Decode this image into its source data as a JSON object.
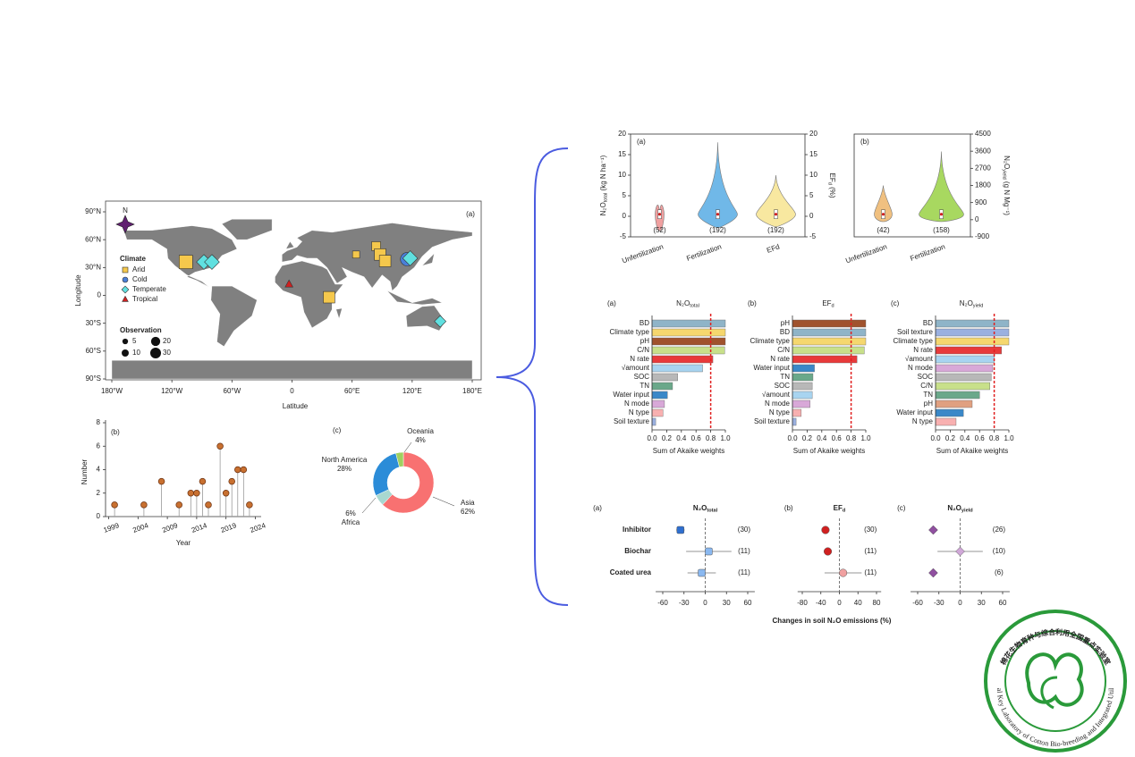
{
  "chart_data": [
    {
      "type": "map",
      "panel": "(a)",
      "north": "N",
      "xlabel": "Latitude",
      "ylabel": "Longitude",
      "xlim": [
        -180,
        180
      ],
      "ylim": [
        -90,
        90
      ],
      "xticks": [
        {
          "value": -180,
          "label": "180°W"
        },
        {
          "value": -120,
          "label": "120°W"
        },
        {
          "value": -60,
          "label": "60°W"
        },
        0,
        {
          "value": 60,
          "label": "60°E"
        },
        {
          "value": 120,
          "label": "120°E"
        },
        {
          "value": 180,
          "label": "180°E"
        }
      ],
      "yticks": [
        {
          "value": 90,
          "label": "90°N"
        },
        {
          "value": 60,
          "label": "60°N"
        },
        {
          "value": 30,
          "label": "30°N"
        },
        0,
        {
          "value": -30,
          "label": "30°S"
        },
        {
          "value": -60,
          "label": "60°S"
        },
        {
          "value": -90,
          "label": "90°S"
        }
      ],
      "climate_title": "Climate",
      "climates": [
        "Arid",
        "Cold",
        "Temperate",
        "Tropical"
      ],
      "climate_colors": [
        "#f5c84c",
        "#4a7fd8",
        "#60e0e0",
        "#d02020"
      ],
      "observation_title": "Observation",
      "observations": [
        5,
        10,
        20,
        30
      ],
      "points": {
        "lon": [
          -106,
          -88,
          -80,
          84,
          88,
          93,
          64,
          115,
          118,
          37,
          -3,
          148
        ],
        "lat": [
          36,
          36,
          36,
          53,
          44,
          37,
          44,
          39,
          40,
          -2,
          12,
          -28
        ],
        "climate": [
          0,
          2,
          2,
          0,
          0,
          0,
          0,
          1,
          2,
          0,
          3,
          2
        ],
        "observations": [
          30,
          20,
          20,
          10,
          20,
          20,
          5,
          30,
          20,
          20,
          5,
          10
        ]
      }
    },
    {
      "type": "lollipop",
      "panel": "(b)",
      "xlabel": "Year",
      "ylabel": "Number",
      "x": [
        2000,
        2005,
        2008,
        2011,
        2013,
        2014,
        2015,
        2016,
        2018,
        2019,
        2020,
        2021,
        2022,
        2023
      ],
      "values": [
        1,
        1,
        3,
        1,
        2,
        2,
        3,
        1,
        6,
        2,
        3,
        4,
        4,
        1
      ],
      "color": "#c87030",
      "xlim": [
        1998,
        2025
      ],
      "xticks": [
        1999,
        2004,
        2009,
        2014,
        2019,
        2024
      ],
      "ylim": [
        0,
        8
      ],
      "yticks": [
        0,
        2,
        4,
        6,
        8
      ]
    },
    {
      "type": "donut",
      "panel": "(c)",
      "categories": [
        "Asia",
        "Africa",
        "North America",
        "Oceania"
      ],
      "values": [
        62,
        6,
        28,
        4
      ],
      "value_labels": [
        "62%",
        "6%",
        "28%",
        "4%"
      ],
      "colors": [
        "#f87171",
        "#a8d8d0",
        "#2b8cd8",
        "#a0d060"
      ]
    },
    {
      "type": "violin",
      "panel": "(a)",
      "categories": [
        "Unfertilization",
        "Fertilization",
        "EFd"
      ],
      "counts": [
        52,
        192,
        192
      ],
      "count_labels": [
        "(52)",
        "(192)",
        "(192)"
      ],
      "colors": [
        "#f0a0a0",
        "#70b8e8",
        "#f8e8a0"
      ],
      "ylim": [
        -5,
        20
      ],
      "yticks": [
        -5,
        0,
        5,
        10,
        15,
        20
      ],
      "y2lim": [
        -5,
        20
      ],
      "y2ticks": [
        -5,
        0,
        5,
        10,
        15,
        20
      ],
      "ylabel": {
        "main": "N₂O",
        "sub": "total",
        "unit": " (kg N ha⁻¹)"
      },
      "y2label": {
        "main": "EF",
        "sub": "d",
        "unit": " (%)"
      }
    },
    {
      "type": "violin",
      "panel": "(b)",
      "categories": [
        "Unfertilization",
        "Fertilization"
      ],
      "counts": [
        42,
        158
      ],
      "count_labels": [
        "(42)",
        "(158)"
      ],
      "colors": [
        "#f0c080",
        "#a8d860"
      ],
      "y2lim": [
        -900,
        4500
      ],
      "y2ticks": [
        -900,
        0,
        900,
        1800,
        2700,
        3600,
        4500
      ],
      "y2label": {
        "main": "N₂O",
        "sub": "yield",
        "unit": " (g N Mg⁻¹)"
      }
    },
    {
      "type": "hbar",
      "panel": "(a)",
      "title": {
        "main": "N₂O",
        "sub": "total"
      },
      "xlabel": "Sum of Akaike weights",
      "categories": [
        "BD",
        "Climate type",
        "pH",
        "C/N",
        "N rate",
        "√amount",
        "SOC",
        "TN",
        "Water input",
        "N mode",
        "N type",
        "Soil texture"
      ],
      "values": [
        1.0,
        1.0,
        1.0,
        0.99,
        0.83,
        0.69,
        0.35,
        0.28,
        0.21,
        0.17,
        0.15,
        0.05
      ],
      "colors": [
        "#8fb4c8",
        "#f5d76e",
        "#a0522d",
        "#c8e08a",
        "#e83a3a",
        "#a8d4f0",
        "#b8b8b8",
        "#6aa88a",
        "#3a88c8",
        "#d8a8d8",
        "#f8b0b0",
        "#9ab0e0"
      ],
      "threshold": 0.8,
      "xlim": [
        0,
        1
      ],
      "xticks": [
        {
          "value": 0,
          "label": "0.0"
        },
        0.2,
        0.4,
        0.6,
        0.8,
        {
          "value": 1,
          "label": "1.0"
        }
      ]
    },
    {
      "type": "hbar",
      "panel": "(b)",
      "title": {
        "main": "EF",
        "sub": "d"
      },
      "xlabel": "Sum of Akaike weights",
      "categories": [
        "pH",
        "BD",
        "Climate type",
        "C/N",
        "N rate",
        "Water input",
        "TN",
        "SOC",
        "√amount",
        "N mode",
        "N type",
        "Soil texture"
      ],
      "values": [
        1.0,
        1.0,
        1.0,
        0.98,
        0.88,
        0.3,
        0.28,
        0.27,
        0.27,
        0.24,
        0.12,
        0.05
      ],
      "colors": [
        "#a0522d",
        "#8fb4c8",
        "#f5d76e",
        "#c8e08a",
        "#e83a3a",
        "#3a88c8",
        "#6aa88a",
        "#b8b8b8",
        "#a8d4f0",
        "#d8a8d8",
        "#f8b0b0",
        "#9ab0e0"
      ],
      "threshold": 0.8,
      "xlim": [
        0,
        1
      ],
      "xticks": [
        {
          "value": 0,
          "label": "0.0"
        },
        0.2,
        0.4,
        0.6,
        0.8,
        {
          "value": 1,
          "label": "1.0"
        }
      ]
    },
    {
      "type": "hbar",
      "panel": "(c)",
      "title": {
        "main": "N₂O",
        "sub": "yield"
      },
      "xlabel": "Sum of Akaike weights",
      "categories": [
        "BD",
        "Soil texture",
        "Climate type",
        "N rate",
        "√amount",
        "N mode",
        "SOC",
        "C/N",
        "TN",
        "pH",
        "Water input",
        "N type"
      ],
      "values": [
        1.0,
        1.0,
        1.0,
        0.9,
        0.8,
        0.78,
        0.76,
        0.74,
        0.6,
        0.5,
        0.38,
        0.28
      ],
      "colors": [
        "#8fb4c8",
        "#9ab0e0",
        "#f5d76e",
        "#e83a3a",
        "#a8d4f0",
        "#d8a8d8",
        "#b8b8b8",
        "#c8e08a",
        "#6aa88a",
        "#e0a080",
        "#3a88c8",
        "#f8b0b0"
      ],
      "threshold": 0.8,
      "xlim": [
        0,
        1
      ],
      "xticks": [
        {
          "value": 0,
          "label": "0.0"
        },
        0.2,
        0.4,
        0.6,
        0.8,
        {
          "value": 1,
          "label": "1.0"
        }
      ]
    },
    {
      "type": "forest",
      "panel": "(a)",
      "title": {
        "main": "N₂O",
        "sub": "total"
      },
      "categories": [
        "Inhibitor",
        "Biochar",
        "Coated urea"
      ],
      "values": [
        -35,
        5,
        -5
      ],
      "errors": [
        6,
        32,
        20
      ],
      "counts": [
        30,
        11,
        11
      ],
      "count_labels": [
        "(30)",
        "(11)",
        "(11)"
      ],
      "colors": [
        "#2e6fd0",
        "#8ab8f0",
        "#8ab8f0"
      ],
      "marker": "square",
      "xlim": [
        -70,
        70
      ],
      "xticks": [
        -60,
        -30,
        0,
        30,
        60
      ]
    },
    {
      "type": "forest",
      "panel": "(b)",
      "title": {
        "main": "EF",
        "sub": "d"
      },
      "xlabel": "Changes in soil N₂O emissions (%)",
      "values": [
        -30,
        -25,
        8
      ],
      "errors": [
        5,
        6,
        40
      ],
      "counts": [
        30,
        11,
        11
      ],
      "count_labels": [
        "(30)",
        "(11)",
        "(11)"
      ],
      "colors": [
        "#d02020",
        "#d02020",
        "#f0a0a0"
      ],
      "marker": "circle",
      "xlim": [
        -90,
        90
      ],
      "xticks": [
        -80,
        -40,
        0,
        40,
        80
      ]
    },
    {
      "type": "forest",
      "panel": "(c)",
      "title": {
        "main": "N₂O",
        "sub": "yield"
      },
      "values": [
        -38,
        0,
        -38
      ],
      "errors": [
        6,
        32,
        5
      ],
      "counts": [
        26,
        10,
        6
      ],
      "count_labels": [
        "(26)",
        "(10)",
        "(6)"
      ],
      "colors": [
        "#9050a0",
        "#d0a8d8",
        "#9050a0"
      ],
      "marker": "diamond",
      "xlim": [
        -70,
        70
      ],
      "xticks": [
        -60,
        -30,
        0,
        30,
        60
      ]
    }
  ],
  "logo": {
    "cn": "棉花生物育种与综合利用全国重点实验室",
    "en": "National Key Laboratory of Cotton Bio-breeding and Integrated Utilization"
  }
}
